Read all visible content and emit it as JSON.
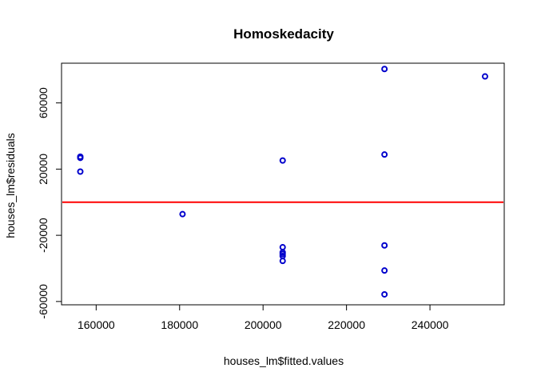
{
  "chart_data": {
    "type": "scatter",
    "title": "Homoskedacity",
    "xlabel": "houses_lm$fitted.values",
    "ylabel": "houses_lm$residuals",
    "xlim": [
      151700,
      257800
    ],
    "ylim": [
      -62000,
      84000
    ],
    "xticks": [
      160000,
      180000,
      200000,
      220000,
      240000
    ],
    "yticks": [
      -60000,
      -20000,
      20000,
      60000
    ],
    "point_color": "#0000cc",
    "hline": {
      "y": 0,
      "color": "#ff0000"
    },
    "grid": false,
    "points": [
      {
        "x": 156200,
        "y": 27500
      },
      {
        "x": 156200,
        "y": 26800
      },
      {
        "x": 156200,
        "y": 18500
      },
      {
        "x": 180700,
        "y": -7200
      },
      {
        "x": 204700,
        "y": 25200
      },
      {
        "x": 204700,
        "y": -27200
      },
      {
        "x": 204700,
        "y": -30300
      },
      {
        "x": 204700,
        "y": -31300
      },
      {
        "x": 204700,
        "y": -32500
      },
      {
        "x": 204700,
        "y": -35500
      },
      {
        "x": 229100,
        "y": 80500
      },
      {
        "x": 229100,
        "y": 28800
      },
      {
        "x": 229100,
        "y": -26100
      },
      {
        "x": 229100,
        "y": -41300
      },
      {
        "x": 229100,
        "y": -55700
      },
      {
        "x": 253200,
        "y": 76000
      }
    ]
  }
}
